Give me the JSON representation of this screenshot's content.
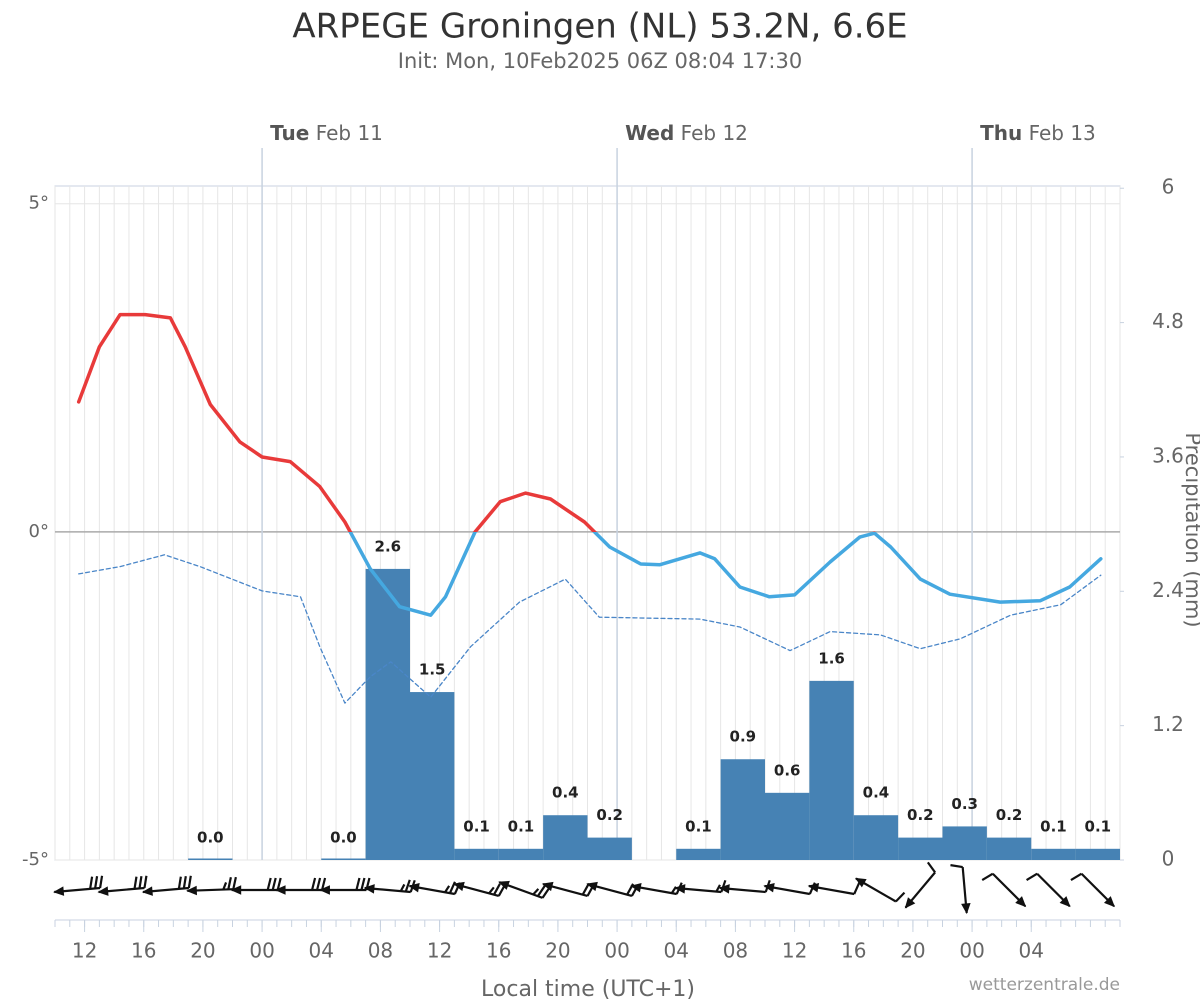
{
  "chart_data": {
    "type": "meteogram",
    "title": "ARPEGE Groningen (NL) 53.2N, 6.6E",
    "subtitle": "Init: Mon, 10Feb2025 06Z 08:04 17:30",
    "x_label": "Local time (UTC+1)",
    "credit": "wetterzentrale.de",
    "y2label": "Precipitation (mm)",
    "xlim": [
      10,
      82
    ],
    "xticks": [
      {
        "value": 12,
        "label": "12"
      },
      {
        "value": 16,
        "label": "16"
      },
      {
        "value": 20,
        "label": "20"
      },
      {
        "value": 24,
        "label": "00"
      },
      {
        "value": 28,
        "label": "04"
      },
      {
        "value": 32,
        "label": "08"
      },
      {
        "value": 36,
        "label": "12"
      },
      {
        "value": 40,
        "label": "16"
      },
      {
        "value": 44,
        "label": "20"
      },
      {
        "value": 48,
        "label": "00"
      },
      {
        "value": 52,
        "label": "04"
      },
      {
        "value": 56,
        "label": "08"
      },
      {
        "value": 60,
        "label": "12"
      },
      {
        "value": 64,
        "label": "16"
      },
      {
        "value": 68,
        "label": "20"
      },
      {
        "value": 72,
        "label": "00"
      },
      {
        "value": 76,
        "label": "04"
      }
    ],
    "days": [
      {
        "value": 24,
        "weekday": "Tue",
        "date": "Feb 11"
      },
      {
        "value": 48,
        "weekday": "Wed",
        "date": "Feb 12"
      },
      {
        "value": 72,
        "weekday": "Thu",
        "date": "Feb 13"
      }
    ],
    "ylim": [
      -5,
      5.27
    ],
    "yticks": [
      {
        "value": 5,
        "label": "5°"
      },
      {
        "value": 0,
        "label": "0°"
      },
      {
        "value": -5,
        "label": "-5°"
      }
    ],
    "y2lim": [
      0,
      6.02
    ],
    "y2ticks": [
      0,
      1.2,
      2.4,
      3.6,
      4.8,
      6
    ],
    "grid": true,
    "series": [
      {
        "colors": {
          "above_zero": "#e83a3a",
          "below_zero": "#45a8e0"
        },
        "dashed": false,
        "x": [
          11.6,
          13.0,
          14.4,
          16.1,
          17.8,
          18.8,
          20.5,
          22.5,
          24.0,
          25.9,
          27.9,
          29.6,
          31.3,
          33.3,
          35.4,
          36.4,
          38.4,
          40.1,
          41.8,
          43.5,
          45.8,
          47.5,
          49.6,
          50.9,
          53.6,
          54.6,
          56.3,
          58.3,
          60.0,
          62.4,
          64.4,
          65.4,
          66.5,
          68.5,
          70.5,
          73.9,
          76.6,
          78.6,
          80.7
        ],
        "values": [
          1.98,
          2.82,
          3.31,
          3.31,
          3.26,
          2.82,
          1.94,
          1.37,
          1.14,
          1.07,
          0.69,
          0.15,
          -0.56,
          -1.14,
          -1.27,
          -0.99,
          0,
          0.46,
          0.59,
          0.5,
          0.15,
          -0.23,
          -0.49,
          -0.5,
          -0.32,
          -0.41,
          -0.84,
          -0.99,
          -0.96,
          -0.46,
          -0.08,
          -0.02,
          -0.23,
          -0.72,
          -0.95,
          -1.07,
          -1.05,
          -0.84,
          -0.41
        ]
      },
      {
        "color": "#4a86c8",
        "dashed": true,
        "x": [
          11.6,
          14.4,
          17.4,
          19.8,
          24.0,
          26.6,
          27.9,
          29.6,
          31.3,
          32.7,
          35.4,
          38.1,
          41.4,
          44.5,
          46.8,
          53.6,
          56.3,
          59.7,
          62.4,
          65.8,
          68.5,
          71.2,
          74.6,
          78.0,
          80.7
        ],
        "values": [
          -0.64,
          -0.53,
          -0.35,
          -0.53,
          -0.9,
          -0.99,
          -1.75,
          -2.61,
          -2.21,
          -1.98,
          -2.52,
          -1.75,
          -1.07,
          -0.72,
          -1.3,
          -1.33,
          -1.45,
          -1.81,
          -1.52,
          -1.57,
          -1.78,
          -1.63,
          -1.27,
          -1.11,
          -0.66
        ]
      }
    ],
    "precipitation": {
      "color": "#4682b4",
      "axis": "y2",
      "x": [
        20.5,
        29.5,
        32.5,
        35.5,
        38.5,
        41.5,
        44.5,
        47.5,
        53.5,
        56.5,
        59.5,
        62.5,
        65.5,
        68.5,
        71.5,
        74.5,
        77.5,
        80.5
      ],
      "values": [
        0,
        0,
        2.6,
        1.5,
        0.1,
        0.1,
        0.4,
        0.2,
        0.1,
        0.9,
        0.6,
        1.6,
        0.4,
        0.2,
        0.3,
        0.2,
        0.1,
        0.1
      ],
      "value_labels": [
        "0.0",
        "0.0",
        "2.6",
        "1.5",
        "0.1",
        "0.1",
        "0.4",
        "0.2",
        "0.1",
        "0.9",
        "0.6",
        "1.6",
        "0.4",
        "0.2",
        "0.3",
        "0.2",
        "0.1",
        "0.1"
      ]
    },
    "wind": {
      "color": "#111111",
      "x": [
        11.5,
        14.5,
        17.5,
        20.5,
        23.5,
        26.5,
        29.5,
        32.5,
        35.5,
        38.5,
        41.5,
        44.5,
        47.5,
        50.5,
        53.5,
        56.5,
        59.5,
        62.5,
        65.5,
        68.5,
        71.5,
        74.5,
        77.5,
        80.5
      ],
      "direction": [
        85,
        85,
        85,
        88,
        90,
        90,
        90,
        95,
        100,
        105,
        110,
        105,
        105,
        100,
        95,
        95,
        100,
        100,
        120,
        40,
        355,
        315,
        315,
        315
      ],
      "speed": [
        30,
        30,
        30,
        25,
        30,
        30,
        30,
        25,
        25,
        25,
        25,
        20,
        20,
        15,
        15,
        10,
        10,
        10,
        10,
        10,
        10,
        10,
        10,
        10
      ]
    }
  }
}
